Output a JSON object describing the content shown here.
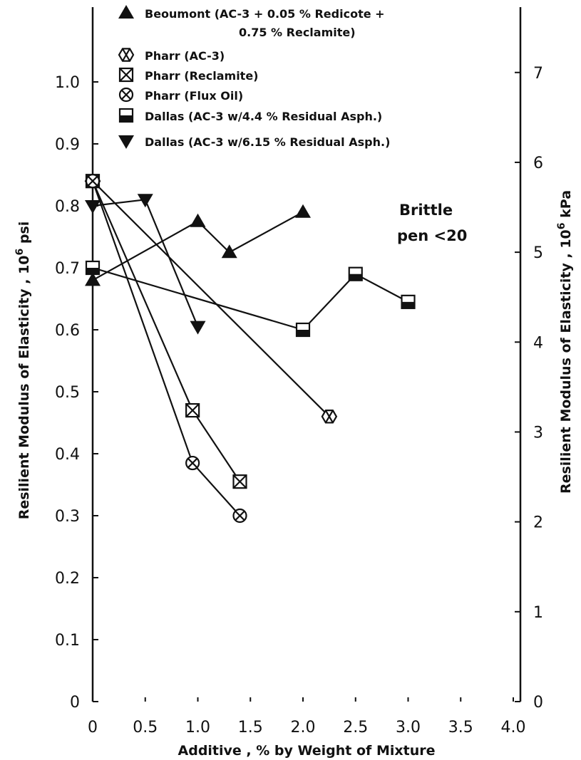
{
  "chart_data": {
    "type": "line",
    "xlabel": "Additive , % by Weight of Mixture",
    "ylabel_left": "Resilient Modulus of Elasticity , 10^6 psi",
    "ylabel_right": "Resilient Modulus of Elasticity , 10^6 kPa",
    "xlim": [
      0,
      4.0
    ],
    "ylim_left": [
      0,
      1.1
    ],
    "ylim_right_kpa": [
      0,
      7.58
    ],
    "x_ticks": [
      "0",
      "0.5",
      "1.0",
      "1.5",
      "2.0",
      "2.5",
      "3.0",
      "3.5",
      "4.0"
    ],
    "y_ticks_left": [
      "0",
      "0.1",
      "0.2",
      "0.3",
      "0.4",
      "0.5",
      "0.6",
      "0.7",
      "0.8",
      "0.9",
      "1.0"
    ],
    "y_ticks_right": [
      "0",
      "1",
      "2",
      "3",
      "4",
      "5",
      "6",
      "7"
    ],
    "annotation": [
      "Brittle",
      "pen <20"
    ],
    "legend_position": "top",
    "series": [
      {
        "name": "Beoumont (AC-3 + 0.05 % Redicote + 0.75 % Reclamite)",
        "marker": "triangle-up",
        "x": [
          0,
          1.0,
          1.3,
          2.0
        ],
        "y": [
          0.68,
          0.775,
          0.725,
          0.79
        ]
      },
      {
        "name": "Pharr (AC-3)",
        "marker": "hexagon-x",
        "x": [
          0,
          2.25
        ],
        "y": [
          0.84,
          0.46
        ]
      },
      {
        "name": "Pharr (Reclamite)",
        "marker": "square-x",
        "x": [
          0,
          0.95,
          1.4
        ],
        "y": [
          0.84,
          0.47,
          0.355
        ]
      },
      {
        "name": "Pharr (Flux Oil)",
        "marker": "circle-x",
        "x": [
          0,
          0.95,
          1.4
        ],
        "y": [
          0.84,
          0.385,
          0.3
        ]
      },
      {
        "name": "Dallas (AC-3 w/4.4 % Residual Asph.)",
        "marker": "half-square",
        "x": [
          0,
          2.0,
          2.5,
          3.0
        ],
        "y": [
          0.7,
          0.6,
          0.69,
          0.645
        ]
      },
      {
        "name": "Dallas (AC-3 w/6.15 % Residual Asph.)",
        "marker": "triangle-down",
        "x": [
          0,
          0.5,
          1.0
        ],
        "y": [
          0.8,
          0.81,
          0.605
        ]
      }
    ]
  },
  "legend": {
    "items": [
      {
        "lines": [
          "Beoumont (AC-3 + 0.05 % Redicote +",
          "0.75 % Reclamite)"
        ],
        "marker": "triangle-up"
      },
      {
        "lines": [
          "Pharr  (AC-3)"
        ],
        "marker": "hexagon-x"
      },
      {
        "lines": [
          "Pharr  (Reclamite)"
        ],
        "marker": "square-x"
      },
      {
        "lines": [
          "Pharr  (Flux Oil)"
        ],
        "marker": "circle-x"
      },
      {
        "lines": [
          "Dallas (AC-3 w/4.4 % Residual Asph.)"
        ],
        "marker": "half-square"
      },
      {
        "lines": [
          "Dallas  (AC-3 w/6.15 % Residual Asph.)"
        ],
        "marker": "triangle-down"
      }
    ]
  },
  "colors": {
    "ink": "#111111",
    "background": "#ffffff"
  }
}
